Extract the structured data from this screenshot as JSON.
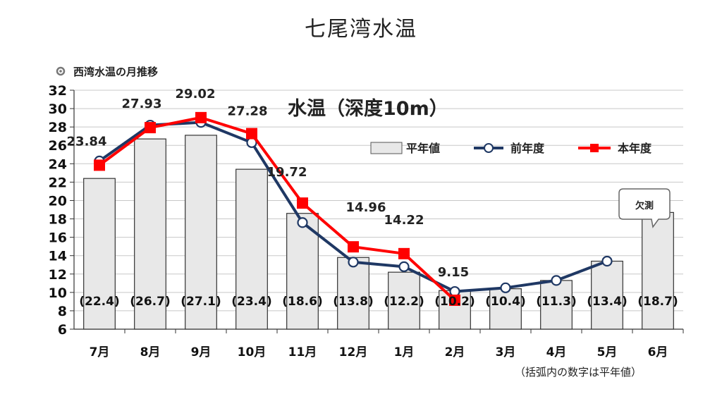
{
  "page": {
    "title": "七尾湾水温"
  },
  "chart_data": {
    "type": "bar",
    "title": "水温（深度10m）",
    "series_title": "西湾水温の月推移",
    "categories": [
      "7月",
      "8月",
      "9月",
      "10月",
      "11月",
      "12月",
      "1月",
      "2月",
      "3月",
      "4月",
      "5月",
      "6月"
    ],
    "ylim": [
      6,
      32
    ],
    "yticks": [
      6,
      8,
      10,
      12,
      14,
      16,
      18,
      20,
      22,
      24,
      26,
      28,
      30,
      32
    ],
    "grid": true,
    "legend_position": "top-right",
    "series": [
      {
        "name": "平年値",
        "kind": "bar",
        "values": [
          22.4,
          26.7,
          27.1,
          23.4,
          18.6,
          13.8,
          12.2,
          10.2,
          10.4,
          11.3,
          13.4,
          18.7
        ],
        "labels": [
          "(22.4)",
          "(26.7)",
          "(27.1)",
          "(23.4)",
          "(18.6)",
          "(13.8)",
          "(12.2)",
          "(10.2)",
          "(10.4)",
          "(11.3)",
          "(13.4)",
          "(18.7)"
        ],
        "color": "#e8e8e8"
      },
      {
        "name": "前年度",
        "kind": "line",
        "values": [
          24.3,
          28.2,
          28.5,
          26.3,
          17.6,
          13.3,
          12.8,
          10.1,
          10.5,
          11.3,
          13.4,
          null
        ],
        "color": "#1f3864"
      },
      {
        "name": "本年度",
        "kind": "line",
        "values": [
          23.84,
          27.93,
          29.02,
          27.28,
          19.72,
          14.96,
          14.22,
          9.15,
          null,
          null,
          null,
          null
        ],
        "labels": [
          "23.84",
          "27.93",
          "29.02",
          "27.28",
          "19.72",
          "14.96",
          "14.22",
          "9.15",
          "",
          "",
          "",
          ""
        ],
        "color": "#ff0000"
      }
    ],
    "annotations": [
      {
        "text": "欠測",
        "category": "6月"
      },
      {
        "text": "（括弧内の数字は平年値）"
      }
    ]
  }
}
